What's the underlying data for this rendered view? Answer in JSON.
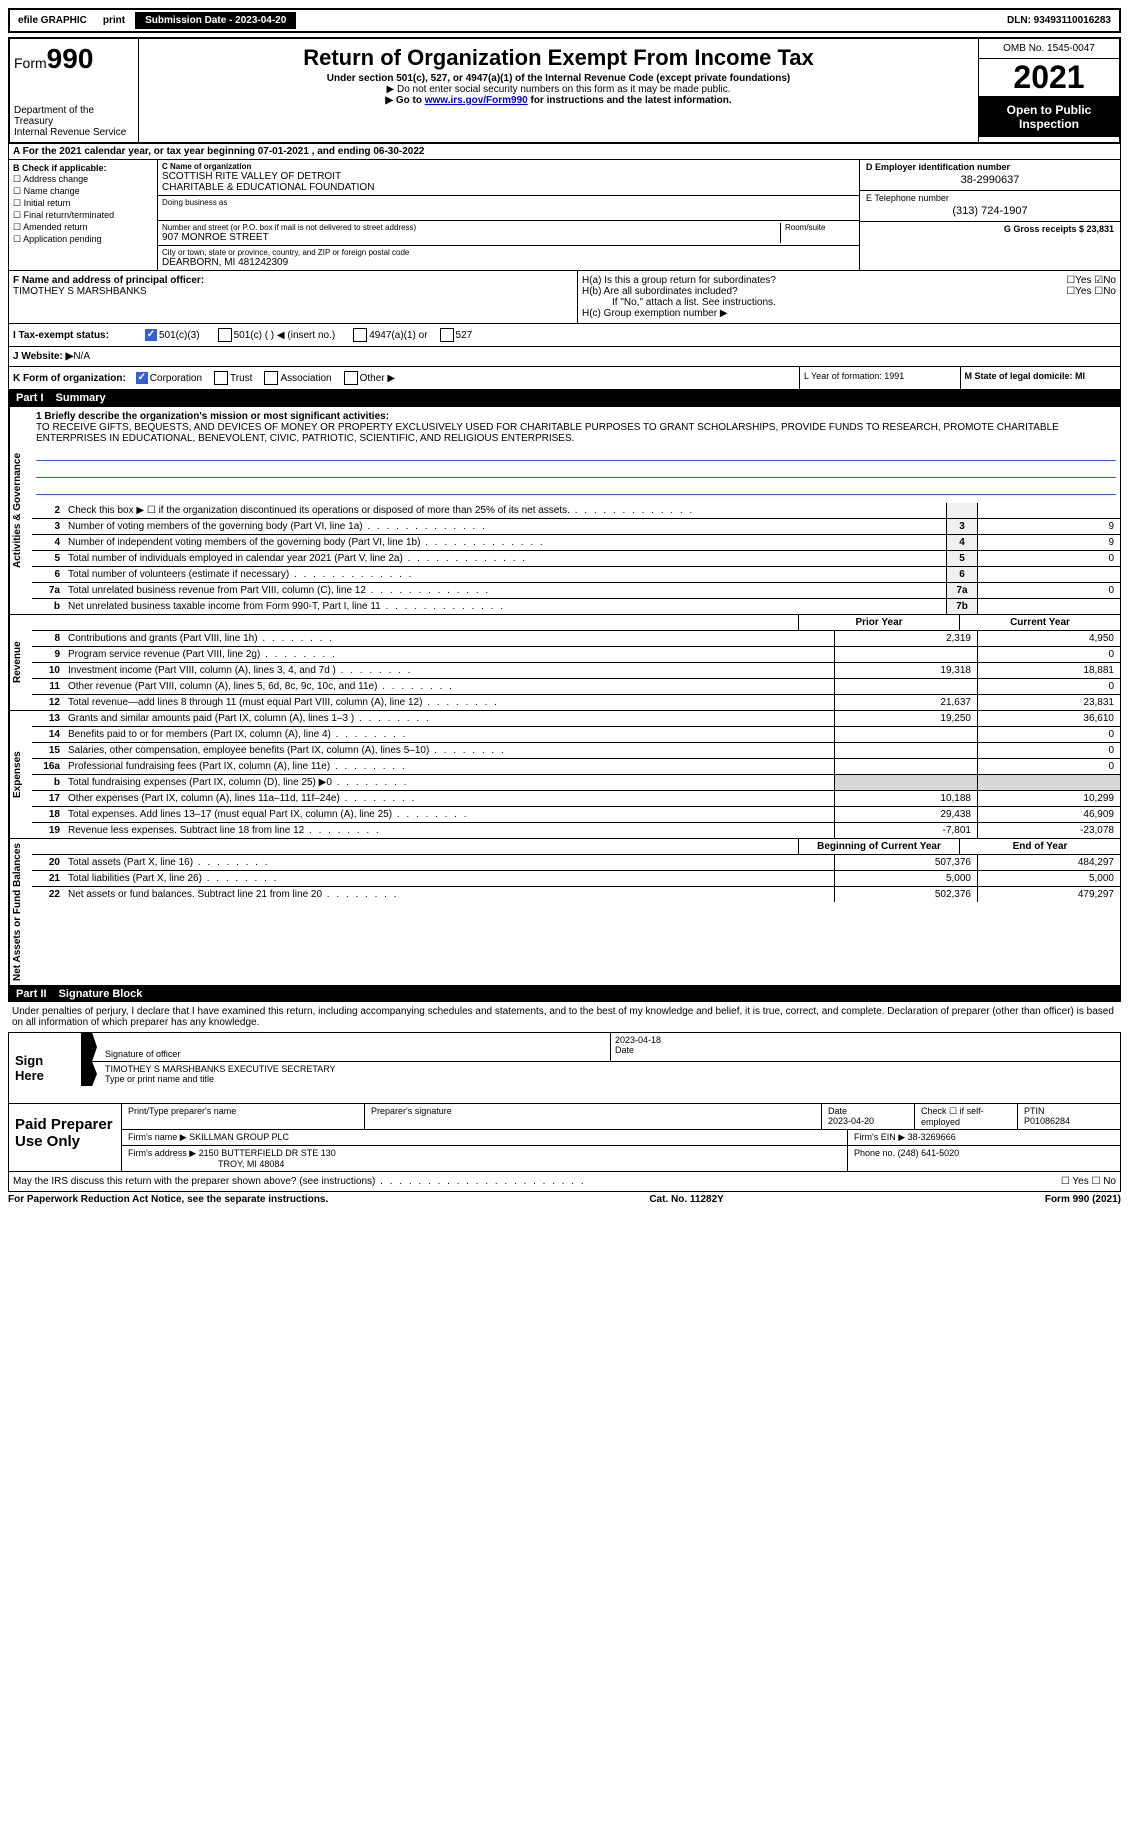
{
  "topbar": {
    "efile": "efile GRAPHIC",
    "print": "print",
    "submission": "Submission Date - 2023-04-20",
    "dln": "DLN: 93493110016283"
  },
  "header": {
    "form": "Form",
    "num": "990",
    "title": "Return of Organization Exempt From Income Tax",
    "sub": "Under section 501(c), 527, or 4947(a)(1) of the Internal Revenue Code (except private foundations)",
    "note": "▶ Do not enter social security numbers on this form as it may be made public.",
    "link_pre": "▶ Go to ",
    "link": "www.irs.gov/Form990",
    "link_post": " for instructions and the latest information.",
    "dept": "Department of the Treasury",
    "irs": "Internal Revenue Service",
    "omb": "OMB No. 1545-0047",
    "year": "2021",
    "open": "Open to Public Inspection"
  },
  "rowA": "A For the 2021 calendar year, or tax year beginning 07-01-2021    , and ending 06-30-2022",
  "checks": {
    "hdr": "B Check if applicable:",
    "c1": "☐ Address change",
    "c2": "☐ Name change",
    "c3": "☐ Initial return",
    "c4": "☐ Final return/terminated",
    "c5": "☐ Amended return",
    "c6": "☐ Application pending"
  },
  "org": {
    "c_label": "C Name of organization",
    "name1": "SCOTTISH RITE VALLEY OF DETROIT",
    "name2": "CHARITABLE & EDUCATIONAL FOUNDATION",
    "dba_label": "Doing business as",
    "addr_label": "Number and street (or P.O. box if mail is not delivered to street address)",
    "room": "Room/suite",
    "addr": "907 MONROE STREET",
    "city_label": "City or town, state or province, country, and ZIP or foreign postal code",
    "city": "DEARBORN, MI  481242309"
  },
  "right": {
    "d_label": "D Employer identification number",
    "ein": "38-2990637",
    "e_label": "E Telephone number",
    "phone": "(313) 724-1907",
    "g": "G Gross receipts $ 23,831"
  },
  "sectF": {
    "f_label": "F Name and address of principal officer:",
    "officer": "TIMOTHEY S MARSHBANKS",
    "h1a": "H(a)  Is this a group return for subordinates?",
    "h1a_ans": "☐Yes ☑No",
    "h1b": "H(b)  Are all subordinates included?",
    "h1b_ans": "☐Yes ☐No",
    "h1b_note": "If \"No,\" attach a list. See instructions.",
    "hc": "H(c)  Group exemption number ▶"
  },
  "taxrow": {
    "label": "I  Tax-exempt status:",
    "o1": "501(c)(3)",
    "o2": "501(c) (  ) ◀ (insert no.)",
    "o3": "4947(a)(1) or",
    "o4": "527"
  },
  "website": {
    "label": "J  Website: ▶",
    "val": "  N/A"
  },
  "korg": {
    "label": "K Form of organization:",
    "o1": "Corporation",
    "o2": "Trust",
    "o3": "Association",
    "o4": "Other ▶"
  },
  "lm": {
    "l": "L Year of formation: 1991",
    "m": "M State of legal domicile: MI"
  },
  "part1": {
    "num": "Part I",
    "title": "Summary"
  },
  "mission": {
    "label": "1  Briefly describe the organization's mission or most significant activities:",
    "text": "TO RECEIVE GIFTS, BEQUESTS, AND DEVICES OF MONEY OR PROPERTY EXCLUSIVELY USED FOR CHARITABLE PURPOSES TO GRANT SCHOLARSHIPS, PROVIDE FUNDS TO RESEARCH, PROMOTE CHARITABLE ENTERPRISES IN EDUCATIONAL, BENEVOLENT, CIVIC, PATRIOTIC, SCIENTIFIC, AND RELIGIOUS ENTERPRISES."
  },
  "side": {
    "gov": "Activities & Governance",
    "rev": "Revenue",
    "exp": "Expenses",
    "net": "Net Assets or Fund Balances"
  },
  "gov_rows": [
    {
      "n": "2",
      "d": "Check this box ▶ ☐ if the organization discontinued its operations or disposed of more than 25% of its net assets.",
      "b": "",
      "v": ""
    },
    {
      "n": "3",
      "d": "Number of voting members of the governing body (Part VI, line 1a)",
      "b": "3",
      "v": "9"
    },
    {
      "n": "4",
      "d": "Number of independent voting members of the governing body (Part VI, line 1b)",
      "b": "4",
      "v": "9"
    },
    {
      "n": "5",
      "d": "Total number of individuals employed in calendar year 2021 (Part V, line 2a)",
      "b": "5",
      "v": "0"
    },
    {
      "n": "6",
      "d": "Total number of volunteers (estimate if necessary)",
      "b": "6",
      "v": ""
    },
    {
      "n": "7a",
      "d": "Total unrelated business revenue from Part VIII, column (C), line 12",
      "b": "7a",
      "v": "0"
    },
    {
      "n": "b",
      "d": "Net unrelated business taxable income from Form 990-T, Part I, line 11",
      "b": "7b",
      "v": ""
    }
  ],
  "py_cy": {
    "py": "Prior Year",
    "cy": "Current Year"
  },
  "rev_rows": [
    {
      "n": "8",
      "d": "Contributions and grants (Part VIII, line 1h)",
      "py": "2,319",
      "cy": "4,950"
    },
    {
      "n": "9",
      "d": "Program service revenue (Part VIII, line 2g)",
      "py": "",
      "cy": "0"
    },
    {
      "n": "10",
      "d": "Investment income (Part VIII, column (A), lines 3, 4, and 7d )",
      "py": "19,318",
      "cy": "18,881"
    },
    {
      "n": "11",
      "d": "Other revenue (Part VIII, column (A), lines 5, 6d, 8c, 9c, 10c, and 11e)",
      "py": "",
      "cy": "0"
    },
    {
      "n": "12",
      "d": "Total revenue—add lines 8 through 11 (must equal Part VIII, column (A), line 12)",
      "py": "21,637",
      "cy": "23,831"
    }
  ],
  "exp_rows": [
    {
      "n": "13",
      "d": "Grants and similar amounts paid (Part IX, column (A), lines 1–3 )",
      "py": "19,250",
      "cy": "36,610"
    },
    {
      "n": "14",
      "d": "Benefits paid to or for members (Part IX, column (A), line 4)",
      "py": "",
      "cy": "0"
    },
    {
      "n": "15",
      "d": "Salaries, other compensation, employee benefits (Part IX, column (A), lines 5–10)",
      "py": "",
      "cy": "0"
    },
    {
      "n": "16a",
      "d": "Professional fundraising fees (Part IX, column (A), line 11e)",
      "py": "",
      "cy": "0"
    },
    {
      "n": "b",
      "d": "Total fundraising expenses (Part IX, column (D), line 25) ▶0",
      "py": "",
      "cy": "",
      "shade": true
    },
    {
      "n": "17",
      "d": "Other expenses (Part IX, column (A), lines 11a–11d, 11f–24e)",
      "py": "10,188",
      "cy": "10,299"
    },
    {
      "n": "18",
      "d": "Total expenses. Add lines 13–17 (must equal Part IX, column (A), line 25)",
      "py": "29,438",
      "cy": "46,909"
    },
    {
      "n": "19",
      "d": "Revenue less expenses. Subtract line 18 from line 12",
      "py": "-7,801",
      "cy": "-23,078"
    }
  ],
  "boy_eoy": {
    "boy": "Beginning of Current Year",
    "eoy": "End of Year"
  },
  "net_rows": [
    {
      "n": "20",
      "d": "Total assets (Part X, line 16)",
      "py": "507,376",
      "cy": "484,297"
    },
    {
      "n": "21",
      "d": "Total liabilities (Part X, line 26)",
      "py": "5,000",
      "cy": "5,000"
    },
    {
      "n": "22",
      "d": "Net assets or fund balances. Subtract line 21 from line 20",
      "py": "502,376",
      "cy": "479,297"
    }
  ],
  "part2": {
    "num": "Part II",
    "title": "Signature Block"
  },
  "sig_text": "Under penalties of perjury, I declare that I have examined this return, including accompanying schedules and statements, and to the best of my knowledge and belief, it is true, correct, and complete. Declaration of preparer (other than officer) is based on all information of which preparer has any knowledge.",
  "sign": {
    "here": "Sign Here",
    "sig_label": "Signature of officer",
    "date": "2023-04-18",
    "date_label": "Date",
    "name": "TIMOTHEY S MARSHBANKS  EXECUTIVE SECRETARY",
    "name_label": "Type or print name and title"
  },
  "paid": {
    "title": "Paid Preparer Use Only",
    "h1": "Print/Type preparer's name",
    "h2": "Preparer's signature",
    "h3_label": "Date",
    "h3": "2023-04-20",
    "h4": "Check ☐ if self-employed",
    "h5_label": "PTIN",
    "h5": "P01086284",
    "firm_label": "Firm's name    ▶",
    "firm": "SKILLMAN GROUP PLC",
    "ein_label": "Firm's EIN ▶",
    "ein": "38-3269666",
    "addr_label": "Firm's address ▶",
    "addr1": "2150 BUTTERFIELD DR STE 130",
    "addr2": "TROY, MI  48084",
    "phone_label": "Phone no.",
    "phone": "(248) 641-5020"
  },
  "footer": {
    "q": "May the IRS discuss this return with the preparer shown above? (see instructions)",
    "ans": "☐ Yes  ☐ No",
    "pra": "For Paperwork Reduction Act Notice, see the separate instructions.",
    "cat": "Cat. No. 11282Y",
    "form": "Form 990 (2021)"
  }
}
